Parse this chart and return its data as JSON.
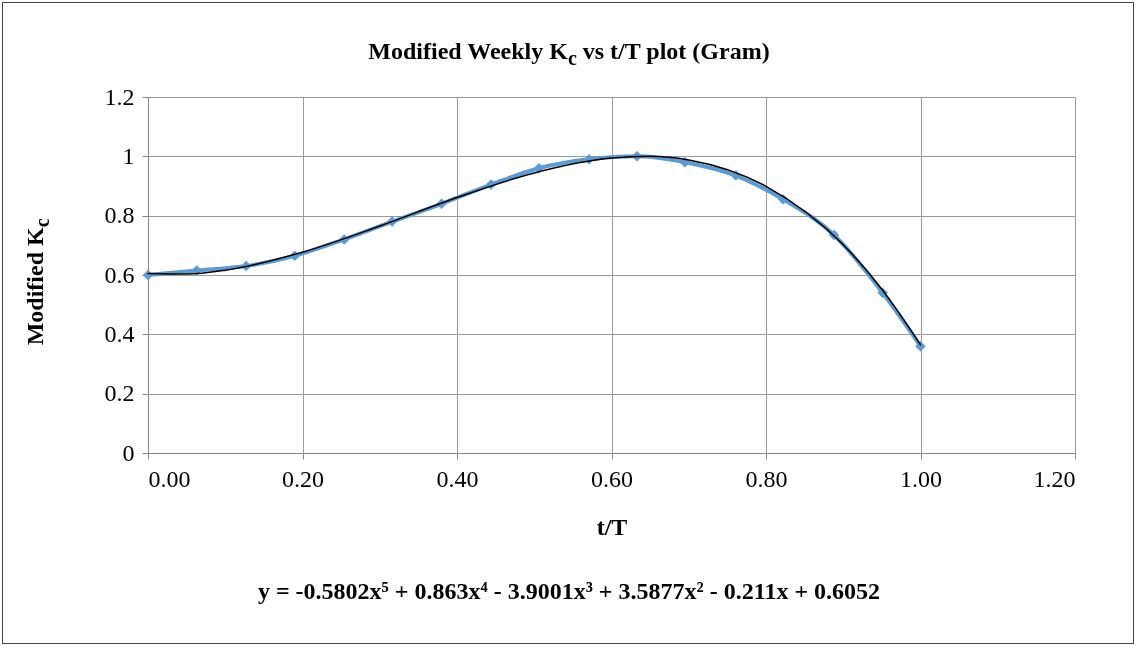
{
  "chart_data": {
    "type": "line",
    "title": "Modified Weekly K$_{c}$  vs t/T plot (Gram)",
    "xlabel": "t/T",
    "ylabel": "Modified K$_{c}$",
    "annotations": [
      "y = -0.5802x⁵ + 0.863x⁴ - 3.9001x³ + 3.5877x² - 0.211x + 0.6052"
    ],
    "xlim": [
      0,
      1.2
    ],
    "xticks": [
      {
        "value": 0,
        "label": "0.00"
      },
      {
        "value": 0.2,
        "label": "0.20"
      },
      {
        "value": 0.4,
        "label": "0.40"
      },
      {
        "value": 0.6,
        "label": "0.60"
      },
      {
        "value": 0.8,
        "label": "0.80"
      },
      {
        "value": 1,
        "label": "1.00"
      },
      {
        "value": 1.2,
        "label": "1.20"
      }
    ],
    "ylim": [
      0,
      1.2
    ],
    "yticks": [
      0,
      0.2,
      0.4,
      0.6,
      0.8,
      1,
      1.2
    ],
    "grid": true,
    "marker": "diamond",
    "series": [
      {
        "color": "#5b9bd5",
        "x": [
          0,
          0.063,
          0.127,
          0.19,
          0.254,
          0.316,
          0.38,
          0.444,
          0.506,
          0.571,
          0.633,
          0.695,
          0.761,
          0.822,
          0.888,
          0.951,
          1.0
        ],
        "values": [
          0.6,
          0.615,
          0.63,
          0.665,
          0.72,
          0.78,
          0.84,
          0.905,
          0.96,
          0.99,
          1.0,
          0.98,
          0.935,
          0.855,
          0.735,
          0.54,
          0.36
        ]
      },
      {
        "type": "line",
        "marker": "none",
        "color": "#000000",
        "x": [
          0,
          0.05,
          0.1,
          0.2,
          0.3,
          0.4,
          0.5,
          0.6,
          0.65,
          0.7,
          0.8,
          0.9,
          0.95,
          1.0
        ],
        "values": [
          0.605,
          0.603,
          0.616,
          0.677,
          0.765,
          0.861,
          0.944,
          0.994,
          1.0,
          0.988,
          0.899,
          0.702,
          0.552,
          0.365
        ]
      }
    ]
  }
}
